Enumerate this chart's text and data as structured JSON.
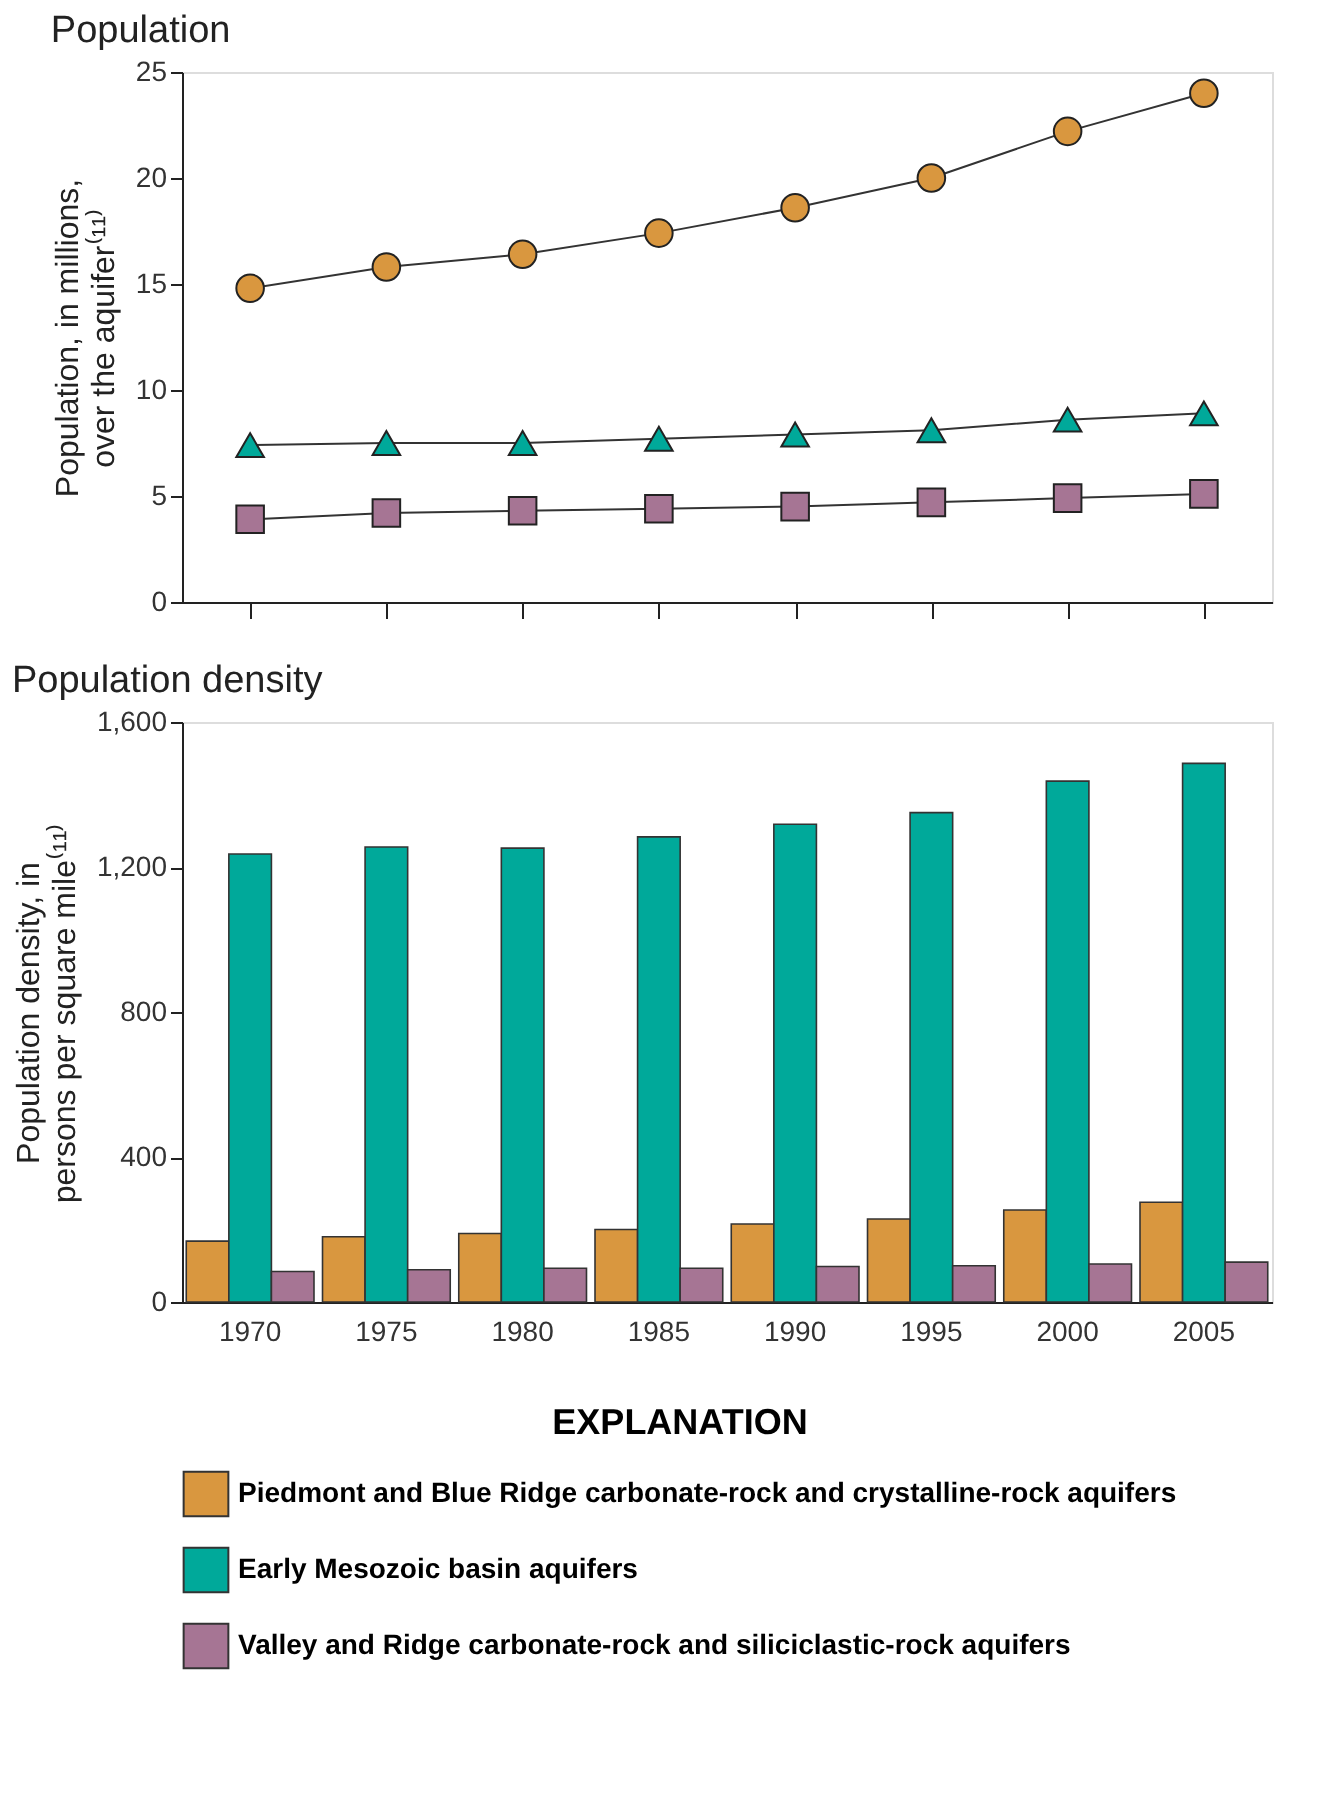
{
  "chart_data": [
    {
      "type": "line",
      "title": "Population",
      "ylabel": "Population, in millions, over the aquifer⁽¹¹⁾",
      "categories": [
        "1970",
        "1975",
        "1980",
        "1985",
        "1990",
        "1995",
        "2000",
        "2005"
      ],
      "ylim": [
        0,
        25
      ],
      "yticks": [
        0,
        5,
        10,
        15,
        20,
        25
      ],
      "tick_labels": "y",
      "grid": false,
      "line_style": "solid",
      "series": [
        {
          "color": "#d9973f",
          "marker": "circle",
          "values": [
            14.8,
            15.8,
            16.4,
            17.4,
            18.6,
            20.0,
            22.2,
            24.0
          ]
        },
        {
          "color": "#00a99a",
          "marker": "triangle",
          "values": [
            7.4,
            7.5,
            7.5,
            7.7,
            7.9,
            8.1,
            8.6,
            8.9
          ]
        },
        {
          "color": "#a67594",
          "marker": "square",
          "values": [
            3.9,
            4.2,
            4.3,
            4.4,
            4.5,
            4.7,
            4.9,
            5.1
          ]
        }
      ]
    },
    {
      "type": "bar",
      "title": "Population density",
      "ylabel": "Population density, in persons per square mile⁽¹¹⁾",
      "categories": [
        "1970",
        "1975",
        "1980",
        "1985",
        "1990",
        "1995",
        "2000",
        "2005"
      ],
      "ylim": [
        0,
        1600
      ],
      "yticks": [
        0,
        400,
        800,
        {
          "value": 1200,
          "label": "1,200"
        },
        {
          "value": 1600,
          "label": "1,600"
        }
      ],
      "grid": false,
      "legend": "bottom",
      "legend_title": "EXPLANATION",
      "series": [
        {
          "name": "Piedmont and Blue Ridge carbonate-rock and crystalline-rock aquifers",
          "color": "#d9973f",
          "values": [
            168,
            180,
            189,
            200,
            215,
            229,
            254,
            275
          ]
        },
        {
          "name": "Early Mesozoic basin aquifers",
          "color": "#00a99a",
          "values": [
            1236,
            1255,
            1252,
            1283,
            1318,
            1350,
            1437,
            1486
          ]
        },
        {
          "name": "Valley and Ridge carbonate-rock and siliciclastic-rock aquifers",
          "color": "#a67594",
          "values": [
            84,
            89,
            93,
            93,
            98,
            100,
            105,
            110
          ]
        }
      ]
    }
  ]
}
